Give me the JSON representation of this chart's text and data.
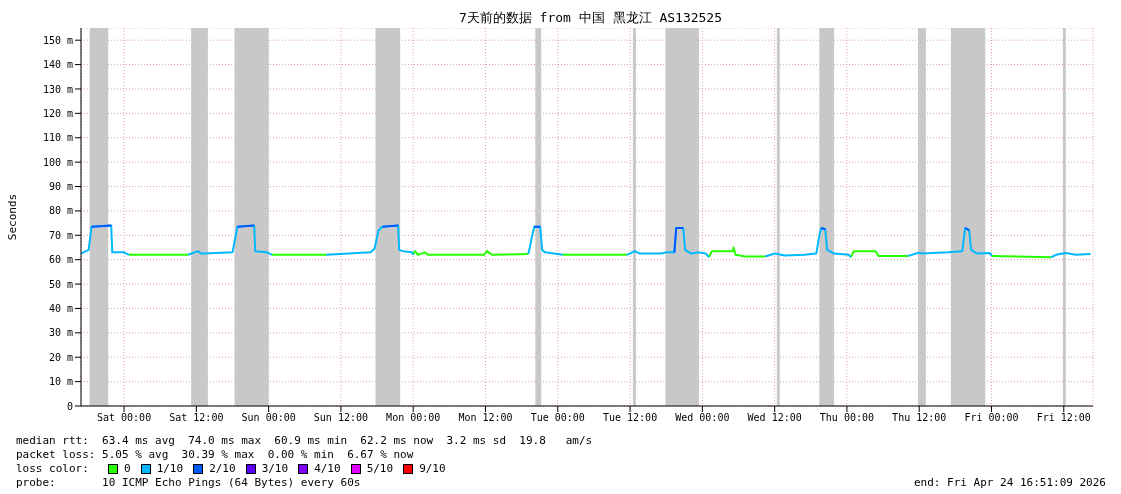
{
  "chart_data": {
    "type": "line",
    "title": "7天前的数据 from 中国 黑龙江 AS132525",
    "ylabel": "Seconds",
    "legend_title": "loss color:",
    "legend": "bottom",
    "grid": true,
    "xlim": [
      "2026-04-17T16:51",
      "2026-04-24T16:51"
    ],
    "xticks": [
      {
        "value": "2026-04-18T00:00",
        "label": "Sat 00:00"
      },
      {
        "value": "2026-04-18T12:00",
        "label": "Sat 12:00"
      },
      {
        "value": "2026-04-19T00:00",
        "label": "Sun 00:00"
      },
      {
        "value": "2026-04-19T12:00",
        "label": "Sun 12:00"
      },
      {
        "value": "2026-04-20T00:00",
        "label": "Mon 00:00"
      },
      {
        "value": "2026-04-20T12:00",
        "label": "Mon 12:00"
      },
      {
        "value": "2026-04-21T00:00",
        "label": "Tue 00:00"
      },
      {
        "value": "2026-04-21T12:00",
        "label": "Tue 12:00"
      },
      {
        "value": "2026-04-22T00:00",
        "label": "Wed 00:00"
      },
      {
        "value": "2026-04-22T12:00",
        "label": "Wed 12:00"
      },
      {
        "value": "2026-04-23T00:00",
        "label": "Thu 00:00"
      },
      {
        "value": "2026-04-23T12:00",
        "label": "Thu 12:00"
      },
      {
        "value": "2026-04-24T00:00",
        "label": "Fri 00:00"
      },
      {
        "value": "2026-04-24T12:00",
        "label": "Fri 12:00"
      }
    ],
    "ylim": [
      0,
      155
    ],
    "yticks": [
      0,
      {
        "value": 10,
        "label": "10 m"
      },
      {
        "value": 20,
        "label": "20 m"
      },
      {
        "value": 30,
        "label": "30 m"
      },
      {
        "value": 40,
        "label": "40 m"
      },
      {
        "value": 50,
        "label": "50 m"
      },
      {
        "value": 60,
        "label": "60 m"
      },
      {
        "value": 70,
        "label": "70 m"
      },
      {
        "value": 80,
        "label": "80 m"
      },
      {
        "value": 90,
        "label": "90 m"
      },
      {
        "value": 100,
        "label": "100 m"
      },
      {
        "value": 110,
        "label": "110 m"
      },
      {
        "value": 120,
        "label": "120 m"
      },
      {
        "value": 130,
        "label": "130 m"
      },
      {
        "value": 140,
        "label": "140 m"
      },
      {
        "value": 150,
        "label": "150 m"
      }
    ],
    "bands": [
      {
        "axis": "x",
        "from": "2026-04-17T18:17",
        "to": "2026-04-17T21:22",
        "color": "#c8c8c8"
      },
      {
        "axis": "x",
        "from": "2026-04-18T11:08",
        "to": "2026-04-18T13:55",
        "color": "#c8c8c8"
      },
      {
        "axis": "x",
        "from": "2026-04-18T18:20",
        "to": "2026-04-19T00:00",
        "color": "#c8c8c8"
      },
      {
        "axis": "x",
        "from": "2026-04-19T17:45",
        "to": "2026-04-19T21:50",
        "color": "#c8c8c8"
      },
      {
        "axis": "x",
        "from": "2026-04-20T20:16",
        "to": "2026-04-20T21:15",
        "color": "#c8c8c8"
      },
      {
        "axis": "x",
        "from": "2026-04-21T12:28",
        "to": "2026-04-21T12:58",
        "color": "#c8c8c8"
      },
      {
        "axis": "x",
        "from": "2026-04-21T17:52",
        "to": "2026-04-21T23:26",
        "color": "#c8c8c8"
      },
      {
        "axis": "x",
        "from": "2026-04-22T12:22",
        "to": "2026-04-22T12:51",
        "color": "#c8c8c8"
      },
      {
        "axis": "x",
        "from": "2026-04-22T19:25",
        "to": "2026-04-22T21:52",
        "color": "#c8c8c8"
      },
      {
        "axis": "x",
        "from": "2026-04-23T11:47",
        "to": "2026-04-23T13:06",
        "color": "#c8c8c8"
      },
      {
        "axis": "x",
        "from": "2026-04-23T17:15",
        "to": "2026-04-23T22:58",
        "color": "#c8c8c8"
      },
      {
        "axis": "x",
        "from": "2026-04-24T11:51",
        "to": "2026-04-24T12:20",
        "color": "#c8c8c8"
      }
    ],
    "series": [
      {
        "name": "0",
        "color": "#26ff00",
        "x": [
          "2026-04-18T00:49",
          "2026-04-18T10:38",
          "2026-04-18T18:00",
          "2026-04-19T00:33",
          "2026-04-19T09:33",
          "2026-04-19T18:00",
          "2026-04-19T23:58",
          "2026-04-20T00:18",
          "2026-04-20T00:47",
          "2026-04-20T01:56",
          "2026-04-20T02:25",
          "2026-04-20T11:45",
          "2026-04-20T12:15",
          "2026-04-20T13:04",
          "2026-04-20T19:07",
          "2026-04-20T22:00",
          "2026-04-21T00:51",
          "2026-04-21T11:29",
          "2026-04-21T18:00",
          "2026-04-22T01:05",
          "2026-04-22T01:34",
          "2026-04-22T05:00",
          "2026-04-22T05:10",
          "2026-04-22T05:30",
          "2026-04-22T07:08",
          "2026-04-22T10:25",
          "2026-04-22T18:00",
          "2026-04-23T00:39",
          "2026-04-23T01:09",
          "2026-04-23T04:45",
          "2026-04-23T05:14",
          "2026-04-23T10:09",
          "2026-04-23T18:00",
          "2026-04-24T00:04",
          "2026-04-24T09:53"
        ],
        "values": [
          62,
          62,
          null,
          62,
          62,
          null,
          62,
          63.5,
          62,
          63,
          62,
          62,
          63.5,
          62,
          62.3,
          null,
          62,
          62,
          null,
          61,
          63.5,
          63.5,
          65,
          62,
          61.3,
          61.3,
          null,
          61,
          63.5,
          63.5,
          61.5,
          61.5,
          null,
          61.5,
          61
        ]
      },
      {
        "name": "1/10",
        "color": "#00b8ff",
        "x": [
          "2026-04-17T16:51",
          "2026-04-17T18:07",
          "2026-04-17T18:36",
          "2026-04-17T21:52",
          "2026-04-17T22:02",
          "2026-04-18T00:00",
          "2026-04-18T00:49",
          "2026-04-18T05:00",
          "2026-04-18T10:38",
          "2026-04-18T12:17",
          "2026-04-18T12:46",
          "2026-04-18T13:15",
          "2026-04-18T18:00",
          "2026-04-18T18:49",
          "2026-04-18T21:36",
          "2026-04-18T21:46",
          "2026-04-18T23:44",
          "2026-04-19T00:33",
          "2026-04-19T05:00",
          "2026-04-19T09:33",
          "2026-04-19T16:55",
          "2026-04-19T17:35",
          "2026-04-19T18:14",
          "2026-04-19T18:53",
          "2026-04-19T21:30",
          "2026-04-19T21:40",
          "2026-04-19T22:19",
          "2026-04-19T23:48",
          "2026-04-19T23:58",
          "2026-04-20T12:00",
          "2026-04-20T19:07",
          "2026-04-20T19:46",
          "2026-04-20T20:06",
          "2026-04-20T21:05",
          "2026-04-20T21:24",
          "2026-04-20T21:54",
          "2026-04-21T00:51",
          "2026-04-21T05:00",
          "2026-04-21T11:29",
          "2026-04-21T12:48",
          "2026-04-21T13:37",
          "2026-04-21T17:13",
          "2026-04-21T18:02",
          "2026-04-21T19:21",
          "2026-04-21T19:40",
          "2026-04-21T20:49",
          "2026-04-21T21:09",
          "2026-04-21T22:08",
          "2026-04-21T23:26",
          "2026-04-22T00:35",
          "2026-04-22T01:05",
          "2026-04-22T05:00",
          "2026-04-22T10:25",
          "2026-04-22T12:03",
          "2026-04-22T13:41",
          "2026-04-22T16:57",
          "2026-04-22T18:55",
          "2026-04-22T19:25",
          "2026-04-22T19:44",
          "2026-04-22T20:24",
          "2026-04-22T20:43",
          "2026-04-22T21:52",
          "2026-04-23T00:20",
          "2026-04-23T00:39",
          "2026-04-23T05:00",
          "2026-04-23T10:09",
          "2026-04-23T11:47",
          "2026-04-23T12:36",
          "2026-04-23T16:42",
          "2026-04-23T19:09",
          "2026-04-23T19:38",
          "2026-04-23T20:18",
          "2026-04-23T20:37",
          "2026-04-23T21:36",
          "2026-04-23T23:44",
          "2026-04-24T00:04",
          "2026-04-24T05:00",
          "2026-04-24T09:53",
          "2026-04-24T10:42",
          "2026-04-24T12:20",
          "2026-04-24T13:59",
          "2026-04-24T16:26"
        ],
        "values": [
          62.5,
          64,
          73.5,
          74,
          63,
          63,
          62,
          null,
          62,
          63.5,
          62.5,
          62.5,
          63,
          73.5,
          74,
          63.5,
          63,
          62,
          null,
          62,
          63,
          64.5,
          72,
          73.5,
          74,
          64,
          63.5,
          63,
          62,
          null,
          62.3,
          70,
          73.5,
          73.5,
          64,
          63,
          62,
          null,
          62,
          63.5,
          62.5,
          62.5,
          63,
          63,
          73,
          73,
          64,
          62.5,
          63,
          62.5,
          61,
          null,
          61.3,
          62.5,
          61.7,
          62,
          62.5,
          70,
          73,
          72.5,
          64,
          62.5,
          62,
          61,
          null,
          61.5,
          62.8,
          62.5,
          63,
          63.5,
          73,
          72,
          64,
          62.5,
          62.7,
          61.5,
          null,
          61,
          62,
          62.7,
          62,
          62.3
        ]
      },
      {
        "name": "2/10",
        "color": "#0059ff",
        "x": [
          "2026-04-17T18:36",
          "2026-04-17T21:52",
          "2026-04-18T05:00",
          "2026-04-18T18:49",
          "2026-04-18T21:36",
          "2026-04-19T05:00",
          "2026-04-19T18:53",
          "2026-04-19T21:30",
          "2026-04-20T05:00",
          "2026-04-20T20:06",
          "2026-04-20T21:05",
          "2026-04-21T05:00",
          "2026-04-21T19:21",
          "2026-04-21T19:40",
          "2026-04-21T20:49",
          "2026-04-22T05:00",
          "2026-04-22T19:44",
          "2026-04-22T20:24",
          "2026-04-23T05:00",
          "2026-04-23T19:38",
          "2026-04-23T20:18"
        ],
        "values": [
          73.5,
          74,
          null,
          73.5,
          74,
          null,
          73.5,
          74,
          null,
          73.5,
          73.5,
          null,
          63,
          73,
          73,
          null,
          73,
          72.5,
          null,
          73,
          72
        ]
      },
      {
        "name": "3/10",
        "color": "#5e00ff"
      },
      {
        "name": "4/10",
        "color": "#7e00ff"
      },
      {
        "name": "5/10",
        "color": "#dd00ff"
      },
      {
        "name": "9/10",
        "color": "#ff0000"
      }
    ],
    "annotations": [
      "median rtt:  63.4 ms avg  74.0 ms max  60.9 ms min  62.2 ms now  3.2 ms sd  19.8   am/s",
      "packet loss: 5.05 % avg  30.39 % max  0.00 % min  6.67 % now",
      "probe:       10 ICMP Echo Pings (64 Bytes) every 60s",
      "end: Fri Apr 24 16:51:09 2026"
    ]
  }
}
